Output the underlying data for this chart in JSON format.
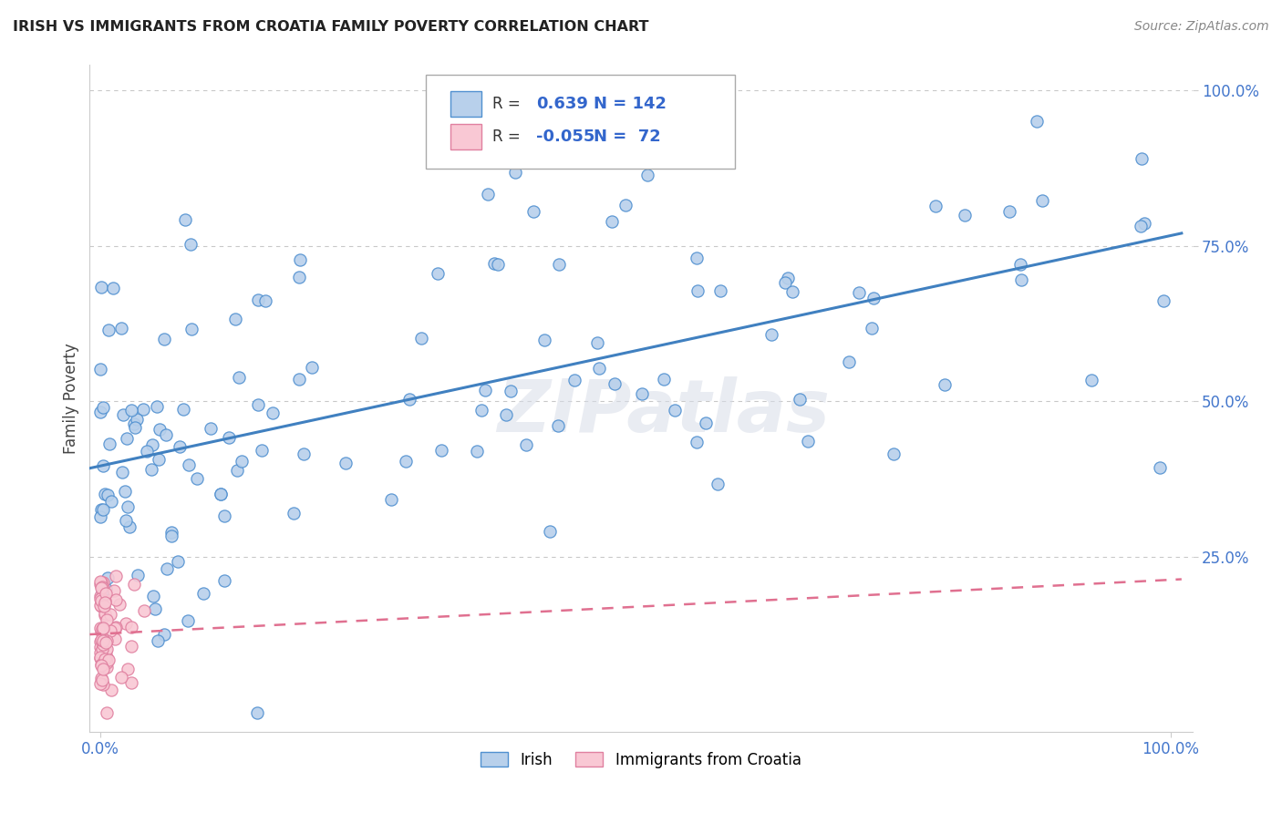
{
  "title": "IRISH VS IMMIGRANTS FROM CROATIA FAMILY POVERTY CORRELATION CHART",
  "source": "Source: ZipAtlas.com",
  "ylabel": "Family Poverty",
  "watermark": "ZIPatlas",
  "irish_R": 0.639,
  "irish_N": 142,
  "croatia_R": -0.055,
  "croatia_N": 72,
  "irish_color": "#b8d0eb",
  "ireland_line_color": "#4080c0",
  "ireland_edge_color": "#5090d0",
  "croatia_color": "#f9c8d4",
  "croatia_line_color": "#e07090",
  "croatia_edge_color": "#e080a0",
  "background_color": "#ffffff",
  "grid_color": "#bbbbbb",
  "title_color": "#222222",
  "source_color": "#888888",
  "axis_label_color": "#444444",
  "ytick_color": "#4477cc",
  "xtick_color": "#4477cc"
}
